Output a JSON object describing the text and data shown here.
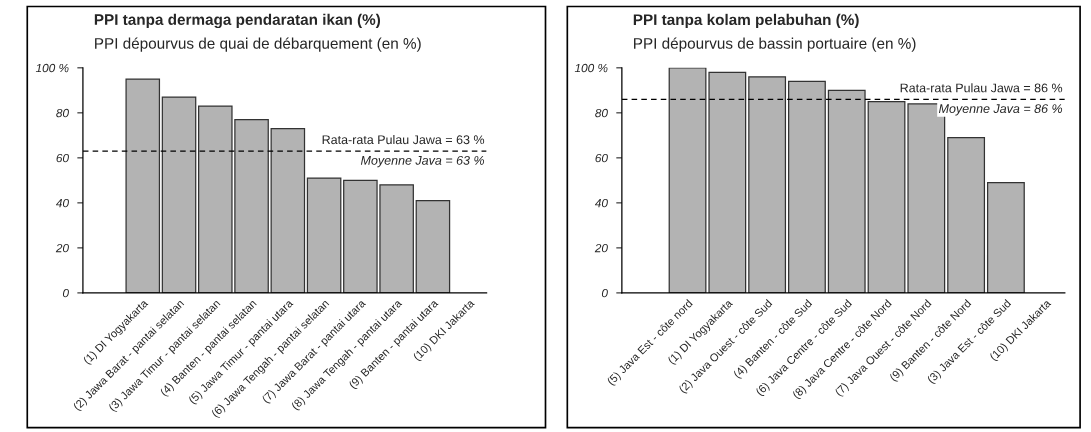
{
  "chart_data": [
    {
      "type": "bar",
      "title": "PPI tanpa dermaga pendaratan ikan (%)",
      "subtitle": "PPI dépourvus de quai de débarquement (en %)",
      "categories": [
        "(1) DI Yogyakarta",
        "(2) Jawa Barat - pantai selatan",
        "(3) Jawa Timur - pantai selatan",
        "(4) Banten - pantai selatan",
        "(5) Jawa Timur - pantai utara",
        "(6) Jawa Tengah - pantai selatan",
        "(7) Jawa Barat - pantai utara",
        "(8) Jawa Tengah - pantai utara",
        "(9) Banten - pantai utara",
        "(10) DKI Jakarta"
      ],
      "values": [
        95,
        87,
        83,
        77,
        73,
        51,
        50,
        48,
        41,
        null
      ],
      "color": "#b3b3b3",
      "ylim": [
        0,
        100
      ],
      "yticks": [
        0,
        20,
        40,
        60,
        80,
        {
          "value": 100,
          "label": "100 %"
        }
      ],
      "grid": false,
      "ref_lines": [
        {
          "axis": "y",
          "value": 63,
          "label": "Rata-rata Pulau Jawa = 63 %",
          "line_style": "dashed",
          "color": "#000000"
        }
      ],
      "annotations": [
        "Moyenne Java = 63 %"
      ]
    },
    {
      "type": "bar",
      "title": "PPI tanpa kolam pelabuhan (%)",
      "subtitle": "PPI dépourvus de bassin portuaire (en %)",
      "categories": [
        "(5) Java Est - côte nord",
        "(1) DI Yogyakarta",
        "(2) Java Ouest - côte Sud",
        "(4) Banten - côte Sud",
        "(6) Java Centre - côte Sud",
        "(8) Java Centre - côte Nord",
        "(7) Java Ouest - côte Nord",
        "(9) Banten - côte Nord",
        "(3) Java Est - côte Sud",
        "(10) DKI Jakarta"
      ],
      "values": [
        100,
        98,
        96,
        94,
        90,
        85,
        84,
        69,
        49,
        null
      ],
      "color": "#b3b3b3",
      "ylim": [
        0,
        100
      ],
      "yticks": [
        0,
        20,
        40,
        60,
        80,
        {
          "value": 100,
          "label": "100 %"
        }
      ],
      "grid": false,
      "ref_lines": [
        {
          "axis": "y",
          "value": 86,
          "label": "Rata-rata Pulau Jawa = 86 %",
          "line_style": "dashed",
          "color": "#000000"
        }
      ],
      "annotations": [
        "Moyenne Java = 86 %"
      ]
    }
  ]
}
